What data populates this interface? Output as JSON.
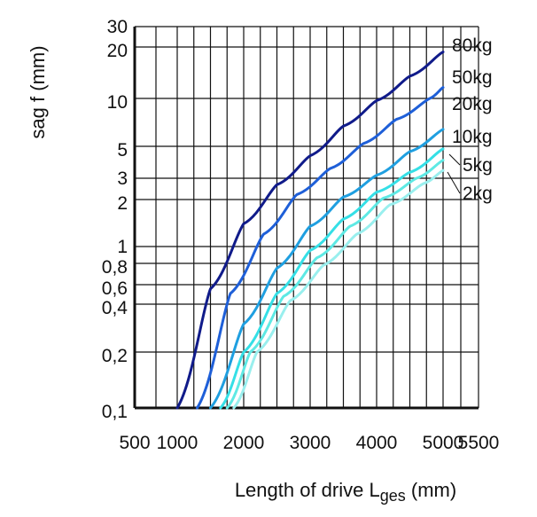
{
  "chart_data": {
    "type": "line",
    "title": "",
    "xlabel_main": "Length of drive L",
    "xlabel_sub": "ges",
    "xlabel_unit": " (mm)",
    "ylabel": "sag f (mm)",
    "x_ticks": [
      {
        "value": 500,
        "label": "500"
      },
      {
        "value": 1000,
        "label": "1000"
      },
      {
        "value": 2000,
        "label": "2000"
      },
      {
        "value": 3000,
        "label": "3000"
      },
      {
        "value": 4000,
        "label": "4000"
      },
      {
        "value": 5000,
        "label": "5000"
      },
      {
        "value": 5500,
        "label": "5500"
      }
    ],
    "y_ticks": [
      {
        "value": 0.1,
        "label": "0,1"
      },
      {
        "value": 0.2,
        "label": "0,2"
      },
      {
        "value": 0.4,
        "label": "0,4"
      },
      {
        "value": 0.6,
        "label": "0,6"
      },
      {
        "value": 0.8,
        "label": "0,8"
      },
      {
        "value": 1,
        "label": "1"
      },
      {
        "value": 2,
        "label": "2"
      },
      {
        "value": 3,
        "label": "3"
      },
      {
        "value": 5,
        "label": "5"
      },
      {
        "value": 10,
        "label": "10"
      },
      {
        "value": 20,
        "label": "20"
      },
      {
        "value": 30,
        "label": "30"
      }
    ],
    "xlim": [
      500,
      5500
    ],
    "ylim": [
      0.1,
      30
    ],
    "yscale": "log",
    "grid": true,
    "legend": "right",
    "series": [
      {
        "name": "80kg",
        "color": "#101b8a",
        "x": [
          1000,
          1500,
          2000,
          2500,
          3000,
          3500,
          4000,
          4500,
          5000
        ],
        "y": [
          0.1,
          0.55,
          1.4,
          2.65,
          4.3,
          6.7,
          9.7,
          13.5,
          18.7
        ]
      },
      {
        "name": "50kg",
        "color": "#1e5fd8",
        "x": [
          1300,
          1800,
          2300,
          2800,
          3300,
          3800,
          4300,
          4800,
          5000
        ],
        "y": [
          0.1,
          0.5,
          1.2,
          2.2,
          3.5,
          5.2,
          7.4,
          10.0,
          11.6
        ]
      },
      {
        "name": "20kg",
        "color": "#1f9fe0",
        "x": [
          1500,
          2000,
          2500,
          3000,
          3500,
          4000,
          4500,
          5000
        ],
        "y": [
          0.1,
          0.3,
          0.75,
          1.35,
          2.1,
          3.15,
          4.6,
          6.4
        ]
      },
      {
        "name": "10kg",
        "color": "#35dfe6",
        "x": [
          1650,
          2000,
          2500,
          3000,
          3500,
          4000,
          4500,
          5000
        ],
        "y": [
          0.1,
          0.2,
          0.5,
          0.95,
          1.5,
          2.3,
          3.3,
          4.8
        ]
      },
      {
        "name": "5kg",
        "color": "#5ee9e4",
        "x": [
          1750,
          2100,
          2600,
          3100,
          3600,
          4100,
          4600,
          5000
        ],
        "y": [
          0.1,
          0.2,
          0.47,
          0.86,
          1.35,
          2.05,
          3.0,
          4.0
        ]
      },
      {
        "name": "2kg",
        "color": "#99efee",
        "x": [
          1850,
          2200,
          2700,
          3200,
          3700,
          4200,
          4700,
          5000
        ],
        "y": [
          0.1,
          0.2,
          0.43,
          0.78,
          1.2,
          1.85,
          2.7,
          3.4
        ]
      }
    ]
  }
}
